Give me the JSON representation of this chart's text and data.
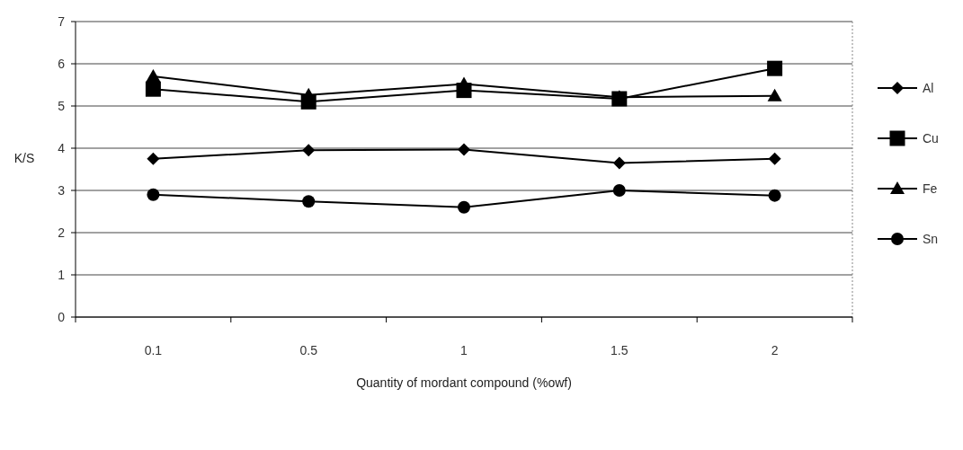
{
  "chart_data": {
    "type": "line",
    "xlabel": "Quantity of mordant compound (%owf)",
    "ylabel": "K/S",
    "categories": [
      "0.1",
      "0.5",
      "1",
      "1.5",
      "2"
    ],
    "series": [
      {
        "name": "Al",
        "color": "#000000",
        "marker": "diamond",
        "values": [
          3.75,
          3.95,
          3.97,
          3.65,
          3.75
        ]
      },
      {
        "name": "Cu",
        "color": "#000000",
        "marker": "square",
        "values": [
          5.4,
          5.1,
          5.37,
          5.17,
          5.89
        ]
      },
      {
        "name": "Fe",
        "color": "#000000",
        "marker": "triangle",
        "values": [
          5.7,
          5.26,
          5.52,
          5.21,
          5.24
        ]
      },
      {
        "name": "Sn",
        "color": "#000000",
        "marker": "circle",
        "values": [
          2.9,
          2.74,
          2.6,
          3.0,
          2.88
        ]
      }
    ],
    "ylim": [
      0,
      7
    ],
    "yticks": [
      0,
      1,
      2,
      3,
      4,
      5,
      6,
      7
    ],
    "grid": "y",
    "legend": "right"
  }
}
